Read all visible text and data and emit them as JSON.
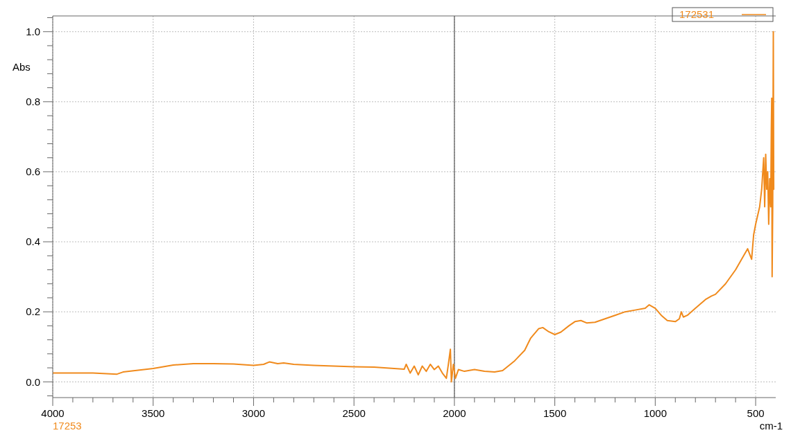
{
  "chart_data": {
    "type": "line",
    "xlabel": "cm-1",
    "ylabel": "Abs",
    "annotations": [
      "17253"
    ],
    "legend": "top right",
    "grid": true,
    "line_style": "solid",
    "marker": "none",
    "xlim": [
      4000,
      400
    ],
    "ylim": [
      -0.045,
      1.045
    ],
    "xticks": [
      4000,
      {
        "value": 3900,
        "label": null
      },
      {
        "value": 3800,
        "label": null
      },
      {
        "value": 3700,
        "label": null
      },
      {
        "value": 3600,
        "label": null
      },
      3500,
      {
        "value": 3400,
        "label": null
      },
      {
        "value": 3300,
        "label": null
      },
      {
        "value": 3200,
        "label": null
      },
      {
        "value": 3100,
        "label": null
      },
      3000,
      {
        "value": 2900,
        "label": null
      },
      {
        "value": 2800,
        "label": null
      },
      {
        "value": 2700,
        "label": null
      },
      {
        "value": 2600,
        "label": null
      },
      2500,
      {
        "value": 2400,
        "label": null
      },
      {
        "value": 2300,
        "label": null
      },
      {
        "value": 2200,
        "label": null
      },
      {
        "value": 2100,
        "label": null
      },
      2000,
      {
        "value": 1900,
        "label": null
      },
      {
        "value": 1800,
        "label": null
      },
      {
        "value": 1700,
        "label": null
      },
      {
        "value": 1600,
        "label": null
      },
      1500,
      {
        "value": 1400,
        "label": null
      },
      {
        "value": 1300,
        "label": null
      },
      {
        "value": 1200,
        "label": null
      },
      {
        "value": 1100,
        "label": null
      },
      1000,
      {
        "value": 900,
        "label": null
      },
      {
        "value": 800,
        "label": null
      },
      {
        "value": 700,
        "label": null
      },
      {
        "value": 600,
        "label": null
      },
      500
    ],
    "yticks": [
      {
        "value": -0.04,
        "label": null
      },
      {
        "value": 0,
        "label": "0.0"
      },
      {
        "value": 0.04,
        "label": null
      },
      {
        "value": 0.08,
        "label": null
      },
      {
        "value": 0.12,
        "label": null
      },
      {
        "value": 0.16,
        "label": null
      },
      {
        "value": 0.2,
        "label": "0.2"
      },
      {
        "value": 0.24,
        "label": null
      },
      {
        "value": 0.28,
        "label": null
      },
      {
        "value": 0.32,
        "label": null
      },
      {
        "value": 0.36,
        "label": null
      },
      {
        "value": 0.4,
        "label": "0.4"
      },
      {
        "value": 0.44,
        "label": null
      },
      {
        "value": 0.48,
        "label": null
      },
      {
        "value": 0.52,
        "label": null
      },
      {
        "value": 0.56,
        "label": null
      },
      {
        "value": 0.6,
        "label": "0.6"
      },
      {
        "value": 0.64,
        "label": null
      },
      {
        "value": 0.68,
        "label": null
      },
      {
        "value": 0.72,
        "label": null
      },
      {
        "value": 0.76,
        "label": null
      },
      {
        "value": 0.8,
        "label": "0.8"
      },
      {
        "value": 0.84,
        "label": null
      },
      {
        "value": 0.88,
        "label": null
      },
      {
        "value": 0.92,
        "label": null
      },
      {
        "value": 0.96,
        "label": null
      },
      {
        "value": 1,
        "label": "1.0"
      },
      {
        "value": 1.04,
        "label": null
      }
    ],
    "ref_lines": [
      {
        "axis": "x",
        "value": 2000,
        "color": "#555555",
        "line_style": "solid"
      }
    ],
    "series": [
      {
        "name": "172531",
        "color": "#f08a1c",
        "x": [
          4000,
          3800,
          3680,
          3650,
          3500,
          3400,
          3300,
          3200,
          3100,
          3000,
          2950,
          2920,
          2880,
          2850,
          2800,
          2700,
          2600,
          2500,
          2400,
          2300,
          2250,
          2240,
          2220,
          2200,
          2180,
          2160,
          2140,
          2120,
          2100,
          2080,
          2060,
          2040,
          2030,
          2020,
          2015,
          2005,
          1995,
          1980,
          1950,
          1900,
          1850,
          1800,
          1760,
          1700,
          1650,
          1620,
          1580,
          1560,
          1530,
          1500,
          1470,
          1430,
          1400,
          1370,
          1340,
          1300,
          1250,
          1200,
          1150,
          1100,
          1050,
          1030,
          1000,
          970,
          940,
          900,
          880,
          870,
          860,
          840,
          800,
          750,
          720,
          700,
          650,
          600,
          560,
          540,
          520,
          510,
          500,
          480,
          470,
          460,
          455,
          450,
          445,
          440,
          435,
          430,
          425,
          422,
          420,
          418,
          415,
          412,
          410
        ],
        "values": [
          0.025,
          0.025,
          0.022,
          0.028,
          0.038,
          0.048,
          0.052,
          0.052,
          0.051,
          0.047,
          0.05,
          0.057,
          0.052,
          0.054,
          0.05,
          0.047,
          0.045,
          0.043,
          0.042,
          0.038,
          0.036,
          0.05,
          0.025,
          0.045,
          0.02,
          0.045,
          0.03,
          0.05,
          0.035,
          0.045,
          0.025,
          0.01,
          0.05,
          0.093,
          0.0,
          0.05,
          0.01,
          0.035,
          0.03,
          0.035,
          0.03,
          0.028,
          0.032,
          0.06,
          0.09,
          0.125,
          0.152,
          0.155,
          0.143,
          0.135,
          0.142,
          0.16,
          0.172,
          0.175,
          0.168,
          0.17,
          0.18,
          0.19,
          0.2,
          0.205,
          0.21,
          0.22,
          0.21,
          0.19,
          0.175,
          0.172,
          0.18,
          0.2,
          0.185,
          0.19,
          0.21,
          0.235,
          0.245,
          0.25,
          0.28,
          0.32,
          0.36,
          0.38,
          0.35,
          0.42,
          0.45,
          0.5,
          0.55,
          0.64,
          0.5,
          0.65,
          0.55,
          0.6,
          0.45,
          0.58,
          0.5,
          0.72,
          0.81,
          0.3,
          0.5,
          1.0,
          0.55
        ]
      }
    ]
  }
}
